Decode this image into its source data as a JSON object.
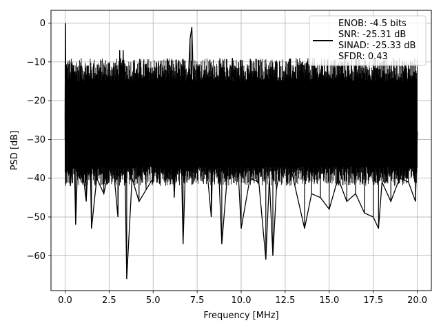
{
  "chart_data": {
    "type": "line",
    "xlabel": "Frequency [MHz]",
    "ylabel": "PSD [dB]",
    "xlim": [
      -0.8,
      20.8
    ],
    "ylim": [
      -69,
      3.3
    ],
    "xticks": [
      0.0,
      2.5,
      5.0,
      7.5,
      10.0,
      12.5,
      15.0,
      17.5,
      20.0
    ],
    "xtick_labels": [
      "0.0",
      "2.5",
      "5.0",
      "7.5",
      "10.0",
      "12.5",
      "15.0",
      "17.5",
      "20.0"
    ],
    "yticks": [
      0,
      -10,
      -20,
      -30,
      -40,
      -50,
      -60
    ],
    "ytick_labels": [
      "0",
      "−10",
      "−20",
      "−30",
      "−40",
      "−50",
      "−60"
    ],
    "grid": true,
    "legend": {
      "placement": "top-right",
      "lines": [
        "ENOB: -4.5 bits",
        "SNR: -25.31 dB",
        "SINAD: -25.33 dB",
        "SFDR: 0.43"
      ]
    },
    "series": [
      {
        "color": "#000000",
        "noise_band": {
          "x_range": [
            0.0,
            20.0
          ],
          "top_db": -12,
          "bottom_db": -37
        },
        "x": [
          0.0,
          0.02,
          0.06,
          0.1,
          0.3,
          0.5,
          0.6,
          0.8,
          1.0,
          1.2,
          1.4,
          1.5,
          1.8,
          2.2,
          2.6,
          2.8,
          3.0,
          3.1,
          3.2,
          3.3,
          3.5,
          3.8,
          4.2,
          4.6,
          5.0,
          5.4,
          5.8,
          6.0,
          6.2,
          6.5,
          6.7,
          7.0,
          7.1,
          7.2,
          7.3,
          7.4,
          7.6,
          8.0,
          8.3,
          8.5,
          8.9,
          9.2,
          9.5,
          10.0,
          10.5,
          11.0,
          11.4,
          11.6,
          11.8,
          12.0,
          12.5,
          13.0,
          13.6,
          14.0,
          14.5,
          15.0,
          15.5,
          16.0,
          16.5,
          17.0,
          17.5,
          17.8,
          18.0,
          18.5,
          19.0,
          19.5,
          19.9,
          20.0
        ],
        "y": [
          -25,
          0,
          -32,
          -14,
          -42,
          -30,
          -52,
          -24,
          -38,
          -46,
          -28,
          -53,
          -40,
          -44,
          -35,
          -40,
          -50,
          -7,
          -30,
          -7,
          -66,
          -40,
          -46,
          -43,
          -40,
          -28,
          -40,
          -17,
          -45,
          -12,
          -57,
          -14,
          -4,
          -1,
          -17,
          -40,
          -11,
          -35,
          -50,
          -14,
          -57,
          -40,
          -9,
          -53,
          -40,
          -41,
          -61,
          -40,
          -60,
          -43,
          -30,
          -41,
          -53,
          -44,
          -45,
          -48,
          -40,
          -46,
          -44,
          -49,
          -50,
          -53,
          -41,
          -46,
          -40,
          -41,
          -46,
          -28
        ]
      }
    ]
  }
}
